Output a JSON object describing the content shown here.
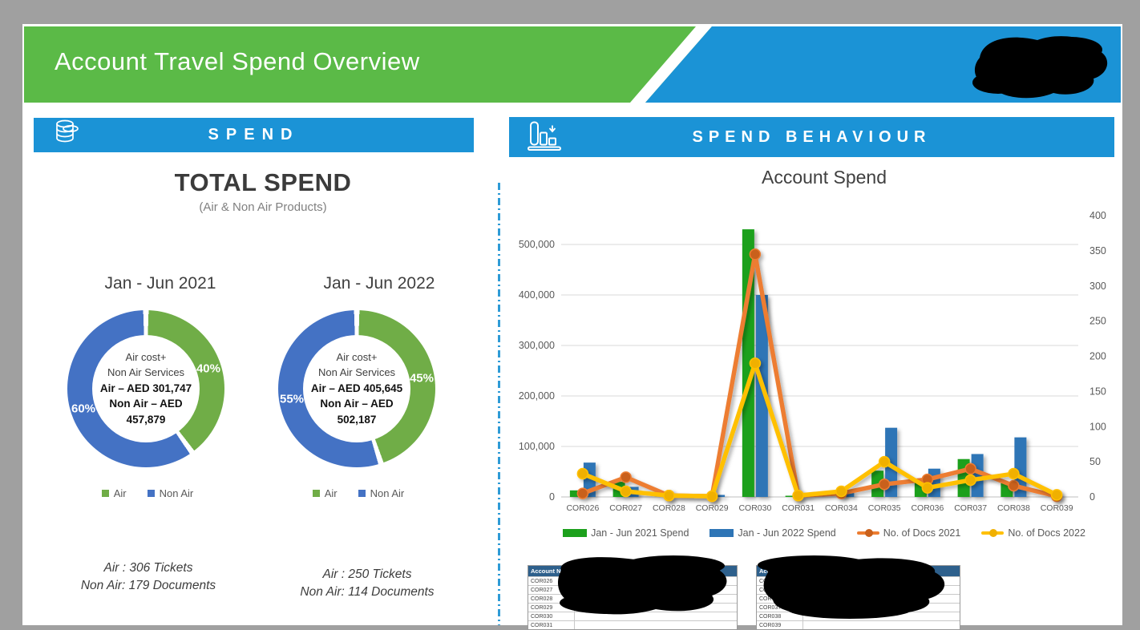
{
  "header": {
    "title": "Account Travel Spend Overview"
  },
  "left_panel": {
    "section_title": "SPEND",
    "heading": "TOTAL SPEND",
    "subheading": "(Air & Non Air Products)"
  },
  "right_panel": {
    "section_title": "SPEND BEHAVIOUR"
  },
  "chart_data": [
    {
      "type": "pie",
      "title": "Jan - Jun 2021",
      "labels": [
        "Air",
        "Non Air"
      ],
      "values": [
        40,
        60
      ],
      "unit": "percent",
      "slice_labels": [
        "40%",
        "60%"
      ],
      "center_lines": [
        "Air cost+",
        "Non Air Services",
        "Air – AED 301,747",
        "Non Air – AED 457,879"
      ],
      "footer": [
        "Air : 306 Tickets",
        "Non Air: 179 Documents"
      ],
      "colors": [
        "#70AD47",
        "#4472C4"
      ]
    },
    {
      "type": "pie",
      "title": "Jan - Jun 2022",
      "labels": [
        "Air",
        "Non Air"
      ],
      "values": [
        45,
        55
      ],
      "unit": "percent",
      "slice_labels": [
        "45%",
        "55%"
      ],
      "center_lines": [
        "Air cost+",
        "Non Air Services",
        "Air – AED 405,645",
        "Non Air – AED 502,187"
      ],
      "footer": [
        "Air : 250 Tickets",
        "Non Air: 114 Documents"
      ],
      "colors": [
        "#70AD47",
        "#4472C4"
      ]
    },
    {
      "type": "bar",
      "title": "Account Spend",
      "categories": [
        "COR026",
        "COR027",
        "COR028",
        "COR029",
        "COR030",
        "COR031",
        "COR034",
        "COR035",
        "COR036",
        "COR037",
        "COR038",
        "COR039"
      ],
      "series": [
        {
          "name": "Jan - Jun 2021 Spend",
          "kind": "bar",
          "axis": "left",
          "color": "#1ca01c",
          "values": [
            13000,
            30000,
            0,
            0,
            530000,
            2000,
            0,
            52000,
            29000,
            75000,
            27000,
            0
          ]
        },
        {
          "name": "Jan - Jun 2022 Spend",
          "kind": "bar",
          "axis": "left",
          "color": "#2e75b6",
          "values": [
            68000,
            20000,
            0,
            4000,
            400000,
            2000,
            11000,
            137000,
            56000,
            85000,
            118000,
            0
          ]
        },
        {
          "name": "No. of Docs 2021",
          "kind": "line",
          "axis": "right",
          "color": "#ed7d31",
          "marker_color": "#c9611c",
          "values": [
            5,
            28,
            2,
            1,
            345,
            2,
            5,
            18,
            25,
            40,
            16,
            1
          ]
        },
        {
          "name": "No. of Docs 2022",
          "kind": "line",
          "axis": "right",
          "color": "#ffc000",
          "marker_color": "#f0b000",
          "values": [
            33,
            8,
            2,
            1,
            190,
            2,
            8,
            50,
            13,
            24,
            33,
            3
          ]
        }
      ],
      "left_axis": {
        "ticks": [
          0,
          100000,
          200000,
          300000,
          400000,
          500000
        ],
        "max": 550000
      },
      "right_axis": {
        "ticks": [
          0,
          50,
          100,
          150,
          200,
          250,
          300,
          350,
          400
        ],
        "max": 440
      },
      "grid": true,
      "legend_position": "bottom"
    }
  ],
  "tables": {
    "left": {
      "header": "Account No.",
      "rows": [
        "COR026",
        "COR027",
        "COR028",
        "COR029",
        "COR030",
        "COR031"
      ]
    },
    "right": {
      "header": "Account No.",
      "rows": [
        "COR034",
        "COR035",
        "COR036",
        "COR037",
        "COR038",
        "COR039"
      ]
    }
  },
  "colors": {
    "banner_green": "#5bba47",
    "banner_blue": "#1b93d6",
    "donut_green": "#70AD47",
    "donut_blue": "#4472C4",
    "bar_green": "#1ca01c",
    "bar_blue": "#2e75b6",
    "line_orange": "#ed7d31",
    "line_yellow": "#ffc000",
    "divider_blue": "#2e9bd6",
    "table_header_blue": "#2e608c"
  }
}
